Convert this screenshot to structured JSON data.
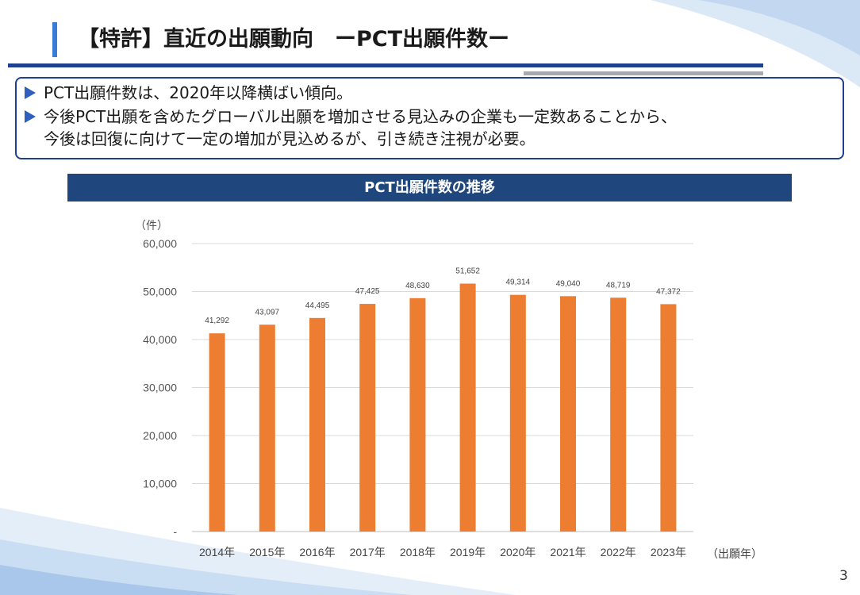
{
  "slide": {
    "title": "【特許】直近の出願動向　ーPCT出願件数ー",
    "bullets": [
      "PCT出願件数は、2020年以降横ばい傾向。",
      "今後PCT出願を含めたグローバル出願を増加させる見込みの企業も一定数あることから、"
    ],
    "bullet_continuation": "今後は回復に向けて一定の増加が見込めるが、引き続き注視が必要。",
    "page_number": "3"
  },
  "chart_data": {
    "type": "bar",
    "title": "PCT出願件数の推移",
    "ylabel": "（件）",
    "xlabel": "（出願年）",
    "categories": [
      "2014年",
      "2015年",
      "2016年",
      "2017年",
      "2018年",
      "2019年",
      "2020年",
      "2021年",
      "2022年",
      "2023年"
    ],
    "values": [
      41292,
      43097,
      44495,
      47425,
      48630,
      51652,
      49314,
      49040,
      48719,
      47372
    ],
    "value_labels": [
      "41,292",
      "43,097",
      "44,495",
      "47,425",
      "48,630",
      "51,652",
      "49,314",
      "49,040",
      "48,719",
      "47,372"
    ],
    "ylim": [
      0,
      60000
    ],
    "yticks": [
      0,
      10000,
      20000,
      30000,
      40000,
      50000,
      60000
    ],
    "ytick_labels": [
      "-",
      "10,000",
      "20,000",
      "30,000",
      "40,000",
      "50,000",
      "60,000"
    ],
    "grid": true,
    "bar_color": "#ed7d31"
  },
  "colors": {
    "accent": "#1f3f8f",
    "header": "#1f477d",
    "bar": "#ed7d31"
  }
}
